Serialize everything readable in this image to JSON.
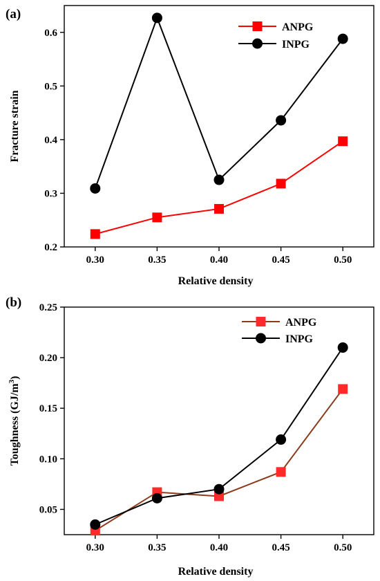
{
  "chart_data": [
    {
      "type": "line",
      "panel_label": "(a)",
      "xlabel": "Relative density",
      "ylabel": "Fracture strain",
      "x": [
        0.3,
        0.35,
        0.4,
        0.45,
        0.5
      ],
      "x_tick_labels": [
        "0.30",
        "0.35",
        "0.40",
        "0.45",
        "0.50"
      ],
      "xlim": [
        0.275,
        0.525
      ],
      "ylim": [
        0.2,
        0.65
      ],
      "y_ticks": [
        0.2,
        0.3,
        0.4,
        0.5,
        0.6
      ],
      "y_tick_labels": [
        "0.2",
        "0.3",
        "0.4",
        "0.5",
        "0.6"
      ],
      "legend_position": "top-right",
      "series": [
        {
          "name": "ANPG",
          "values": [
            0.224,
            0.255,
            0.271,
            0.318,
            0.397
          ],
          "line_color": "#ff0000",
          "marker_color": "#ff0000",
          "marker": "square"
        },
        {
          "name": "INPG",
          "values": [
            0.309,
            0.627,
            0.325,
            0.436,
            0.588
          ],
          "line_color": "#000000",
          "marker_color": "#000000",
          "marker": "circle"
        }
      ]
    },
    {
      "type": "line",
      "panel_label": "(b)",
      "xlabel": "Relative density",
      "ylabel": "Toughness (GJ/m",
      "ylabel_sup": "3",
      "ylabel_end": ")",
      "x": [
        0.3,
        0.35,
        0.4,
        0.45,
        0.5
      ],
      "x_tick_labels": [
        "0.30",
        "0.35",
        "0.40",
        "0.45",
        "0.50"
      ],
      "xlim": [
        0.275,
        0.525
      ],
      "ylim": [
        0.025,
        0.25
      ],
      "y_ticks": [
        0.05,
        0.1,
        0.15,
        0.2,
        0.25
      ],
      "y_tick_labels": [
        "0.05",
        "0.10",
        "0.15",
        "0.20",
        "0.25"
      ],
      "legend_position": "top-right",
      "series": [
        {
          "name": "ANPG",
          "values": [
            0.029,
            0.067,
            0.063,
            0.087,
            0.169
          ],
          "line_color": "#8b3a1a",
          "marker_color": "#ff2a2a",
          "marker": "square"
        },
        {
          "name": "INPG",
          "values": [
            0.035,
            0.061,
            0.07,
            0.119,
            0.21
          ],
          "line_color": "#000000",
          "marker_color": "#000000",
          "marker": "circle"
        }
      ]
    }
  ]
}
